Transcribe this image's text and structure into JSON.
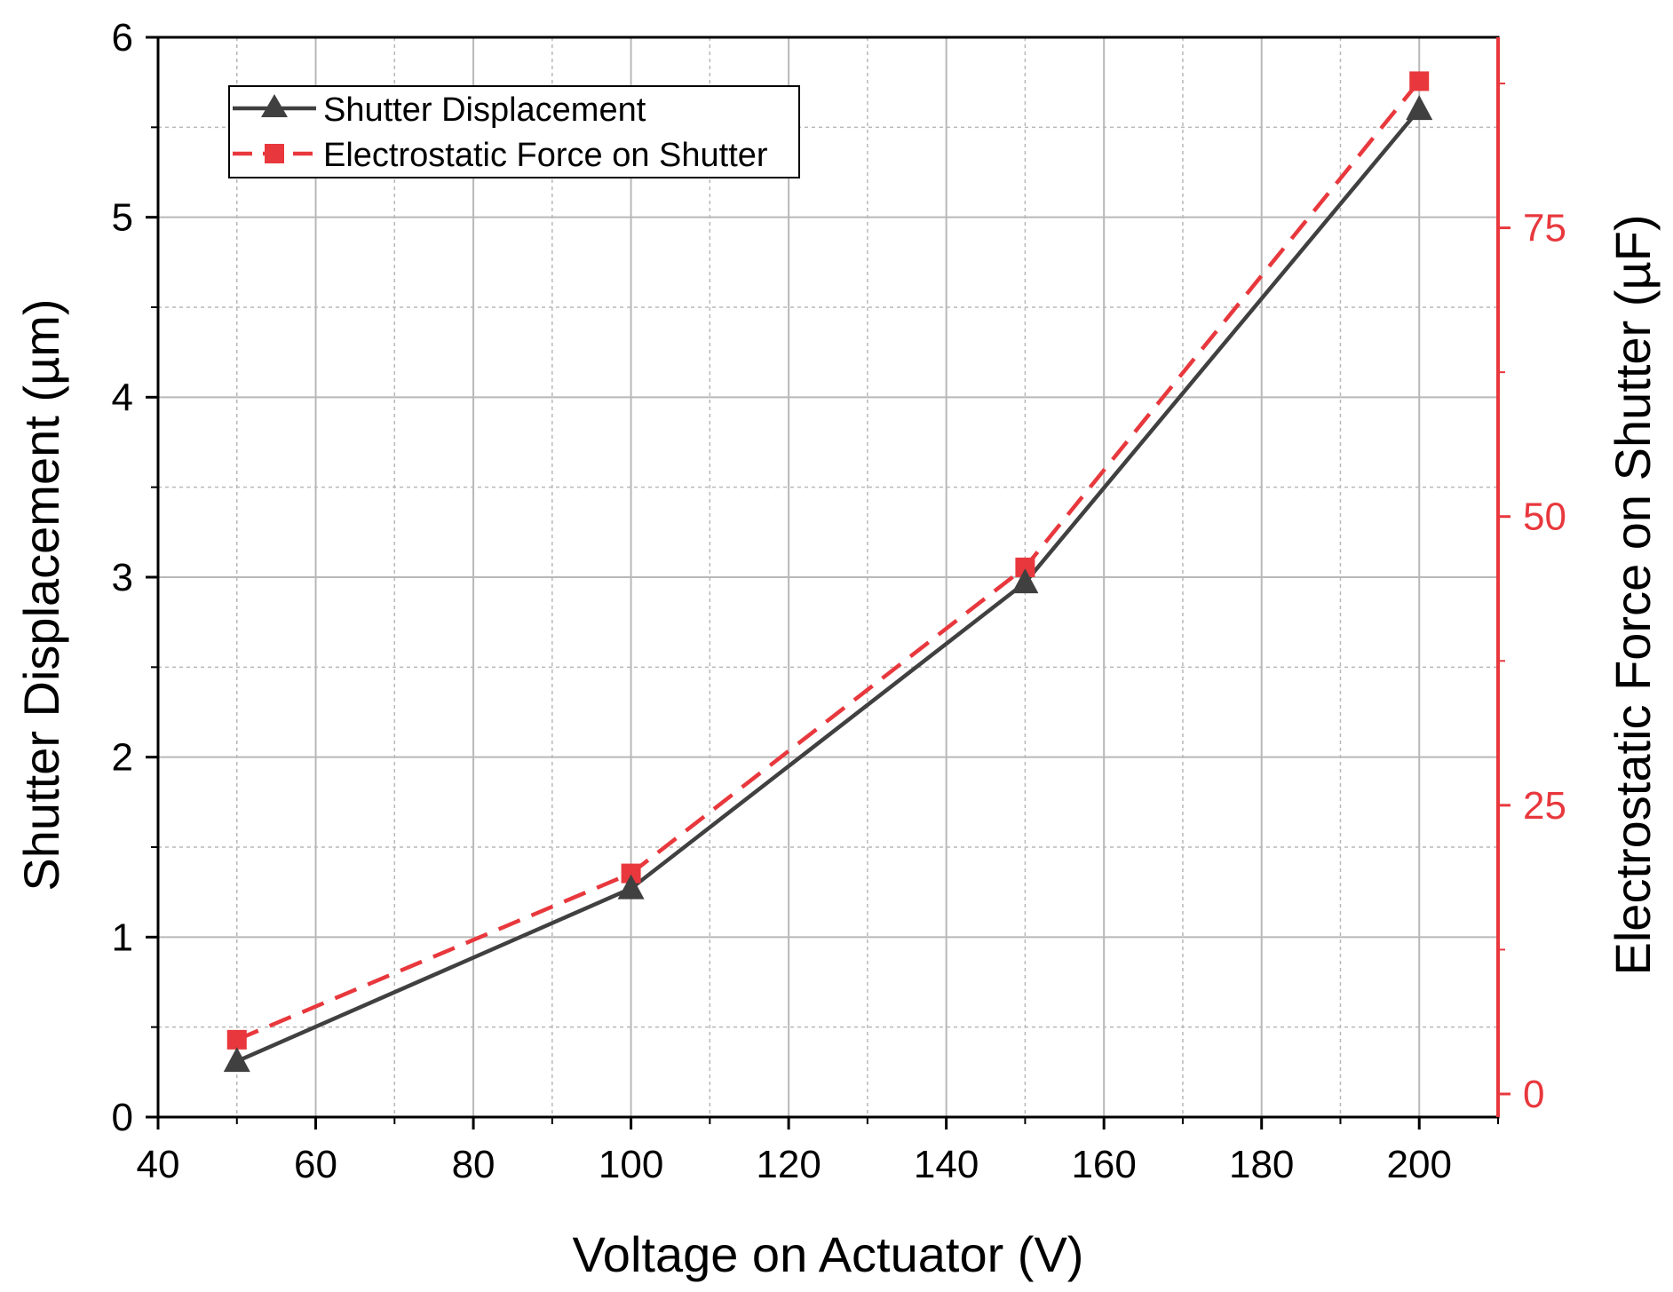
{
  "chart_data": {
    "type": "line",
    "xlabel": "Voltage on Actuator (V)",
    "ylabel": "Shutter Displacement (µm)",
    "y2label": "Electrostatic Force on Shutter (µF)",
    "x": [
      50,
      100,
      150,
      200
    ],
    "xlim": [
      40,
      210
    ],
    "xticks": [
      40,
      60,
      80,
      100,
      120,
      140,
      160,
      180,
      200
    ],
    "ylim": [
      0,
      6
    ],
    "yticks": [
      0,
      1,
      2,
      3,
      4,
      5,
      6
    ],
    "y2lim": [
      -2,
      91.5
    ],
    "y2ticks": [
      0,
      25,
      50,
      75
    ],
    "grid": true,
    "legend_position": "top-left",
    "series": [
      {
        "name": "Shutter Displacement",
        "axis": "left",
        "values": [
          0.31,
          1.27,
          2.97,
          5.6
        ],
        "color": "#404040",
        "marker": "triangle",
        "line_style": "solid"
      },
      {
        "name": "Electrostatic Force on Shutter",
        "axis": "right",
        "values": [
          4.7,
          19.1,
          45.6,
          87.7
        ],
        "color": "#e8383d",
        "marker": "square",
        "line_style": "dashed"
      }
    ],
    "colors": {
      "right_axis": "#e8383d",
      "left_axis": "#000000",
      "grid": "#b8b8b8"
    }
  }
}
